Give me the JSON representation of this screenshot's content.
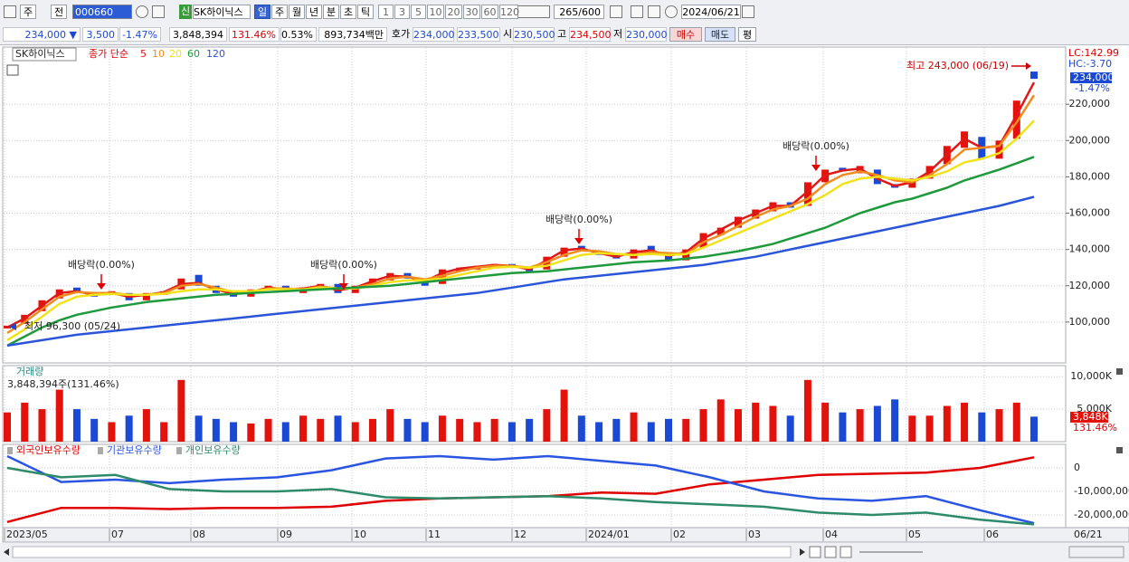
{
  "toolbar": {
    "market": "주",
    "view": "전",
    "code": "000660",
    "new_badge": "신",
    "name": "SK하이닉스",
    "periods": [
      "일",
      "주",
      "월",
      "년",
      "분",
      "초",
      "틱"
    ],
    "intervals": [
      "1",
      "3",
      "5",
      "10",
      "20",
      "30",
      "60",
      "120"
    ],
    "count": "265/600",
    "date": "2024/06/21"
  },
  "quote": {
    "price": "234,000 ▼",
    "change": "3,500",
    "change_pct": "-1.47%",
    "volume": "3,848,394",
    "volume_ratio": "131.46%",
    "turnover": "0.53%",
    "amount": "893,734백만",
    "bid_label": "호가",
    "ask": "234,000",
    "bid": "233,500",
    "open_label": "시",
    "open": "230,500",
    "high_label": "고",
    "high": "234,500",
    "low_label": "저",
    "low": "230,000",
    "buy": "매수",
    "sell": "매도",
    "eval": "평"
  },
  "x_axis": {
    "labels": [
      "2023/05",
      "07",
      "08",
      "09",
      "10",
      "11",
      "12",
      "2024/01",
      "02",
      "03",
      "04",
      "05",
      "06"
    ],
    "end_label": "06/21"
  },
  "chart_data": [
    {
      "type": "candlestick",
      "title": "SK하이닉스",
      "legend_title": "종가 단순",
      "up_color": "#e3120b",
      "down_color": "#1a49d6",
      "open": [
        96500,
        99000,
        106000,
        113000,
        119000,
        116000,
        115000,
        116000,
        112000,
        115000,
        118000,
        126000,
        120000,
        117000,
        114000,
        118000,
        120000,
        116000,
        118000,
        121000,
        116000,
        120000,
        123000,
        127000,
        123000,
        121000,
        128000,
        129000,
        130000,
        132000,
        130000,
        129000,
        136000,
        142000,
        139000,
        137000,
        135000,
        142000,
        138000,
        134000,
        141000,
        148000,
        152000,
        157000,
        161000,
        166000,
        164000,
        177000,
        185000,
        182000,
        184000,
        176000,
        174000,
        179000,
        187000,
        196000,
        202000,
        190000,
        201000,
        238000
      ],
      "close": [
        98000,
        104000,
        112000,
        118000,
        116000,
        114000,
        117000,
        112000,
        116000,
        117000,
        124000,
        120000,
        116000,
        114000,
        118000,
        120000,
        117000,
        119000,
        121000,
        116000,
        120000,
        124000,
        127000,
        124000,
        120000,
        129000,
        130000,
        131000,
        132000,
        130000,
        128000,
        136000,
        141000,
        140000,
        137000,
        135000,
        140000,
        139000,
        134000,
        140000,
        149000,
        152000,
        158000,
        162000,
        166000,
        163000,
        177000,
        184000,
        183000,
        186000,
        176000,
        174000,
        179000,
        186000,
        197000,
        205000,
        190000,
        200000,
        222000,
        234000
      ],
      "series": [
        {
          "name": "5",
          "color": "#e01818",
          "values": [
            97000,
            102000,
            109000,
            116000,
            117000,
            115000,
            116000,
            114000,
            115000,
            116500,
            121000,
            121500,
            118000,
            115500,
            116500,
            119000,
            118000,
            118500,
            120000,
            117500,
            119000,
            122500,
            125500,
            125000,
            122500,
            127000,
            129500,
            130500,
            131500,
            131000,
            129000,
            134000,
            139500,
            140500,
            138000,
            136000,
            138500,
            139500,
            136500,
            138500,
            146000,
            151000,
            156000,
            160000,
            164000,
            164000,
            172000,
            181000,
            183500,
            184500,
            179000,
            175000,
            177000,
            183000,
            192000,
            201000,
            196000,
            197000,
            214000,
            232000
          ]
        },
        {
          "name": "10",
          "color": "#f08c1e",
          "values": [
            94000,
            100000,
            107000,
            114000,
            116500,
            116000,
            116000,
            115000,
            115000,
            116000,
            120000,
            121000,
            119000,
            116500,
            116500,
            118500,
            118500,
            118000,
            119500,
            118500,
            119000,
            121000,
            124000,
            125000,
            123500,
            125500,
            128000,
            130000,
            131000,
            131000,
            130000,
            133000,
            137000,
            139500,
            139000,
            137500,
            137000,
            138500,
            138000,
            137500,
            144000,
            148000,
            153000,
            158000,
            162000,
            164000,
            168000,
            176000,
            181000,
            183000,
            181000,
            178000,
            177000,
            181000,
            187000,
            195000,
            196000,
            197000,
            210000,
            225000
          ]
        },
        {
          "name": "20",
          "color": "#f2e21a",
          "values": [
            90000,
            96000,
            103000,
            110000,
            114000,
            115000,
            115500,
            115000,
            115000,
            115500,
            117000,
            118000,
            118000,
            117000,
            117000,
            118000,
            118000,
            118000,
            119000,
            118500,
            118500,
            120000,
            122000,
            123000,
            123000,
            124000,
            126000,
            128000,
            130000,
            130500,
            130000,
            131000,
            134000,
            137000,
            138000,
            137500,
            137000,
            137500,
            137000,
            137500,
            141000,
            145000,
            149000,
            153000,
            157000,
            161000,
            165000,
            170000,
            176000,
            179000,
            180000,
            179000,
            178000,
            180000,
            183000,
            188000,
            190000,
            193000,
            201000,
            211000
          ]
        },
        {
          "name": "60",
          "color": "#1e9a3c",
          "values": [
            87000,
            92000,
            97000,
            101000,
            104000,
            106000,
            108000,
            109500,
            111000,
            112000,
            113000,
            114000,
            115000,
            115500,
            116000,
            116500,
            117000,
            117500,
            118000,
            118500,
            119000,
            119500,
            120000,
            121000,
            122000,
            123000,
            124000,
            125000,
            126000,
            127000,
            127500,
            128000,
            129000,
            130000,
            131000,
            132000,
            133000,
            133500,
            134000,
            135000,
            136000,
            137500,
            139000,
            141000,
            143000,
            146000,
            149000,
            152000,
            156000,
            160000,
            163000,
            166000,
            168000,
            171000,
            174000,
            178000,
            181000,
            184000,
            187500,
            191000
          ]
        },
        {
          "name": "120",
          "color": "#2a55d8",
          "values": [
            87000,
            88500,
            90000,
            91500,
            93000,
            94000,
            95000,
            96000,
            97000,
            98000,
            99000,
            100000,
            101000,
            102000,
            103000,
            104000,
            105000,
            106000,
            107000,
            108000,
            109000,
            110000,
            111000,
            112000,
            113000,
            114000,
            115000,
            116000,
            117500,
            119000,
            120500,
            122000,
            123500,
            124500,
            125500,
            126500,
            127500,
            128500,
            129500,
            130500,
            131500,
            133000,
            134500,
            136000,
            138000,
            140000,
            142000,
            144000,
            146000,
            148000,
            150000,
            152000,
            154000,
            156000,
            158000,
            160000,
            162000,
            164000,
            166500,
            169000
          ]
        }
      ],
      "ylim": [
        77500,
        251500
      ],
      "yticks": [
        {
          "value": 100000,
          "label": "100,000"
        },
        {
          "value": 120000,
          "label": "120,000"
        },
        {
          "value": 140000,
          "label": "140,000"
        },
        {
          "value": 160000,
          "label": "160,000"
        },
        {
          "value": 180000,
          "label": "180,000"
        },
        {
          "value": 200000,
          "label": "200,000"
        },
        {
          "value": 220000,
          "label": "220,000"
        }
      ],
      "grid": true,
      "annotations": [
        "최고 243,000 (06/19)",
        "최저 96,300 (05/24)",
        "배당락(0.00%)",
        "배당락(0.00%)",
        "배당락(0.00%)",
        "배당락(0.00%)"
      ],
      "right_labels": [
        "LC:142.99",
        "HC:-3.70",
        "234,000",
        "-1.47%"
      ]
    },
    {
      "type": "bar",
      "title": "거래량",
      "subtitle": "3,848,394주(131.46%)",
      "values": [
        4500,
        6000,
        5000,
        8000,
        5000,
        3500,
        3000,
        4000,
        5000,
        3000,
        9500,
        4000,
        3500,
        3000,
        2800,
        3500,
        3000,
        4000,
        3500,
        4000,
        3000,
        3500,
        5000,
        3500,
        3000,
        4000,
        3500,
        3000,
        3500,
        3000,
        3500,
        5000,
        8000,
        4000,
        3000,
        3500,
        4500,
        3000,
        3500,
        3500,
        5000,
        6500,
        5000,
        6000,
        5500,
        4000,
        9500,
        6000,
        4500,
        5000,
        5500,
        6500,
        4000,
        4000,
        5500,
        6000,
        4500,
        5000,
        6000,
        3848
      ],
      "ylim": [
        0,
        11700
      ],
      "yticks": [
        {
          "value": 5000,
          "label": "5,000K"
        },
        {
          "value": 10000,
          "label": "10,000K"
        }
      ],
      "last_labels": [
        "3,848K",
        "131.46%"
      ]
    },
    {
      "type": "line",
      "series": [
        {
          "name": "외국인보유수량",
          "color": "#e00000",
          "values": [
            -23000000,
            -17000000,
            -17000000,
            -17500000,
            -17000000,
            -17000000,
            -16500000,
            -14000000,
            -13000000,
            -12500000,
            -12000000,
            -10500000,
            -11000000,
            -7000000,
            -5000000,
            -3000000,
            -2500000,
            -2000000,
            0,
            4500000
          ]
        },
        {
          "name": "기관보유수량",
          "color": "#2a55e0",
          "values": [
            5000000,
            -6000000,
            -5000000,
            -6500000,
            -5000000,
            -4000000,
            -1000000,
            4000000,
            5000000,
            3500000,
            5000000,
            3000000,
            1000000,
            -4000000,
            -10000000,
            -13000000,
            -14000000,
            -12000000,
            -18000000,
            -23500000
          ]
        },
        {
          "name": "개인보유수량",
          "color": "#2e8b6a",
          "values": [
            0,
            -4000000,
            -3000000,
            -9000000,
            -10000000,
            -10000000,
            -9000000,
            -12500000,
            -13000000,
            -12500000,
            -12000000,
            -13000000,
            -14500000,
            -15500000,
            -16500000,
            -19000000,
            -20000000,
            -19000000,
            -22000000,
            -24000000
          ]
        }
      ],
      "ylim": [
        -25400000,
        9600000
      ],
      "yticks": [
        0,
        {
          "value": -10000000,
          "label": "-10,000,000"
        },
        {
          "value": -20000000,
          "label": "-20,000,000"
        }
      ]
    }
  ]
}
